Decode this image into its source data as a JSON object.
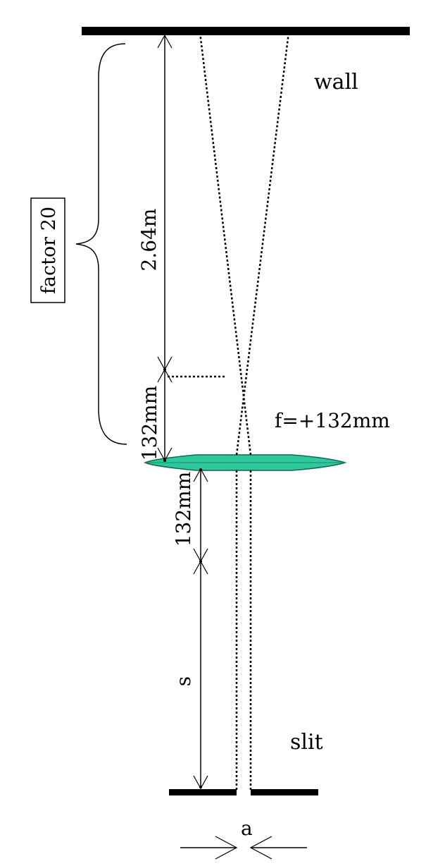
{
  "labels": {
    "wall": "wall",
    "factor": "factor 20",
    "distance_far": "2.64m",
    "focal_length_upper": "132mm",
    "lens_focal": "f=+132mm",
    "focal_length_lower": "132mm",
    "slit_distance": "s",
    "slit": "slit",
    "slit_width": "a"
  },
  "colors": {
    "lens_fill": "#2fc79b",
    "lens_stroke": "#0c6b50",
    "line": "#000000"
  }
}
